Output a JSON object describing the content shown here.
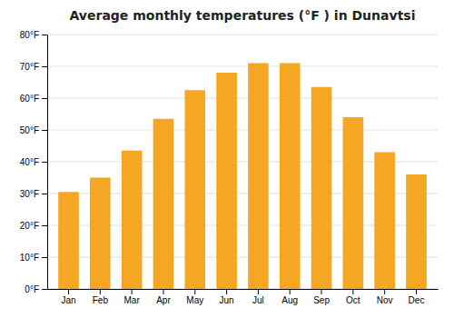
{
  "chart_data": {
    "type": "bar",
    "title": "Average monthly temperatures (°F ) in Dunavtsi",
    "categories": [
      "Jan",
      "Feb",
      "Mar",
      "Apr",
      "May",
      "Jun",
      "Jul",
      "Aug",
      "Sep",
      "Oct",
      "Nov",
      "Dec"
    ],
    "values": [
      30.5,
      35.0,
      43.5,
      53.5,
      62.5,
      68.0,
      71.0,
      71.0,
      63.5,
      54.0,
      43.0,
      36.0
    ],
    "color": "#F5A623",
    "ylim": [
      0,
      80
    ],
    "yticks": [
      {
        "value": 0,
        "label": "0°F"
      },
      {
        "value": 10,
        "label": "10°F"
      },
      {
        "value": 20,
        "label": "20°F"
      },
      {
        "value": 30,
        "label": "30°F"
      },
      {
        "value": 40,
        "label": "40°F"
      },
      {
        "value": 50,
        "label": "50°F"
      },
      {
        "value": 60,
        "label": "60°F"
      },
      {
        "value": 70,
        "label": "70°F"
      },
      {
        "value": 80,
        "label": "80°F"
      }
    ],
    "grid": true
  }
}
